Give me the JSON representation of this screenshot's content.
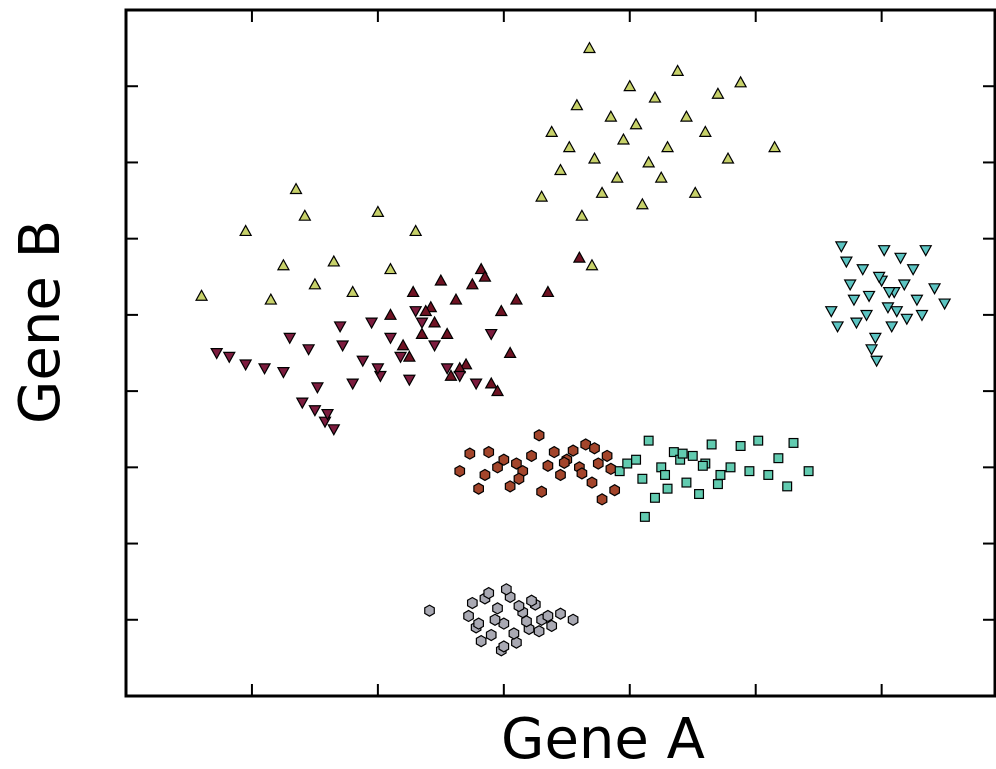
{
  "chart_data": {
    "type": "scatter",
    "xlabel": "Gene A",
    "ylabel": "Gene B",
    "xlim": [
      0,
      6.9
    ],
    "ylim": [
      0,
      9
    ],
    "xticks": [
      1,
      2,
      3,
      4,
      5,
      6
    ],
    "yticks": [
      1,
      2,
      3,
      4,
      5,
      6,
      7,
      8
    ],
    "tick_labels": false,
    "grid": false,
    "series": [
      {
        "color": "#a9a9b3",
        "marker": "hexagon",
        "x": [
          2.41,
          2.72,
          2.78,
          2.85,
          2.9,
          2.95,
          3.0,
          3.05,
          3.1,
          3.15,
          3.2,
          3.25,
          3.3,
          3.38,
          3.45,
          3.55,
          2.75,
          2.82,
          2.88,
          2.93,
          2.98,
          3.02,
          3.08,
          3.12,
          3.18,
          3.22,
          3.28,
          3.35,
          2.8,
          3.0
        ],
        "values": [
          1.12,
          1.05,
          0.9,
          1.28,
          0.8,
          1.15,
          0.95,
          1.3,
          0.7,
          1.1,
          0.88,
          1.2,
          1.0,
          0.92,
          1.08,
          1.0,
          1.22,
          0.72,
          1.35,
          1.0,
          0.6,
          1.4,
          0.82,
          1.18,
          0.98,
          1.25,
          0.85,
          1.05,
          0.95,
          0.65
        ]
      },
      {
        "color": "#a3452b",
        "marker": "hexagon",
        "x": [
          2.65,
          2.73,
          2.85,
          2.88,
          3.0,
          3.05,
          3.1,
          3.15,
          3.22,
          3.28,
          3.35,
          3.4,
          3.45,
          3.5,
          3.55,
          3.6,
          3.65,
          3.7,
          3.75,
          3.78,
          3.82,
          3.88,
          2.95,
          3.12,
          3.3,
          3.48,
          3.62,
          3.72,
          2.8,
          3.85
        ],
        "values": [
          2.95,
          3.18,
          2.9,
          3.2,
          3.1,
          2.75,
          3.05,
          2.95,
          3.15,
          3.42,
          3.02,
          3.2,
          2.9,
          3.1,
          3.22,
          3.0,
          3.3,
          2.8,
          3.05,
          2.58,
          3.15,
          2.7,
          3.0,
          2.85,
          2.68,
          3.06,
          2.92,
          3.25,
          2.72,
          2.98
        ]
      },
      {
        "color": "#62cbb0",
        "marker": "square",
        "x": [
          3.92,
          3.98,
          4.05,
          4.1,
          4.15,
          4.2,
          4.25,
          4.3,
          4.35,
          4.4,
          4.45,
          4.5,
          4.55,
          4.6,
          4.65,
          4.72,
          4.8,
          4.88,
          4.95,
          5.02,
          5.1,
          5.18,
          5.25,
          5.42,
          4.12,
          4.28,
          4.42,
          4.58,
          4.7,
          5.3
        ],
        "values": [
          2.95,
          3.05,
          3.1,
          2.85,
          3.35,
          2.6,
          3.0,
          2.72,
          3.2,
          3.1,
          2.8,
          3.15,
          2.65,
          3.05,
          3.3,
          2.9,
          3.0,
          3.28,
          2.95,
          3.35,
          2.9,
          3.12,
          2.75,
          2.95,
          2.35,
          2.9,
          3.18,
          3.02,
          2.78,
          3.32
        ]
      },
      {
        "color": "#5cc4c2",
        "marker": "triangle-down",
        "x": [
          5.6,
          5.68,
          5.75,
          5.8,
          5.85,
          5.9,
          5.95,
          6.0,
          6.05,
          6.1,
          6.15,
          6.2,
          6.28,
          6.35,
          6.42,
          6.5,
          5.72,
          5.88,
          5.98,
          6.08,
          6.18,
          6.25,
          5.78,
          5.92,
          6.02,
          6.12,
          5.65,
          6.32,
          5.96,
          6.06
        ],
        "values": [
          5.05,
          5.9,
          5.4,
          4.9,
          5.6,
          5.25,
          4.7,
          5.45,
          5.1,
          5.3,
          5.75,
          4.95,
          5.2,
          5.85,
          5.35,
          5.15,
          5.7,
          5.0,
          5.5,
          4.85,
          5.4,
          5.6,
          5.2,
          4.55,
          5.85,
          5.05,
          4.85,
          5.0,
          4.4,
          5.3
        ]
      },
      {
        "color": "#c7d16a",
        "marker": "triangle-up",
        "x": [
          3.3,
          3.38,
          3.45,
          3.52,
          3.58,
          3.62,
          3.68,
          3.72,
          3.78,
          3.85,
          3.9,
          3.95,
          4.0,
          4.05,
          4.1,
          4.15,
          4.2,
          4.25,
          4.3,
          4.38,
          4.45,
          4.52,
          4.6,
          4.7,
          4.78,
          4.88,
          5.15,
          3.7,
          0.6,
          0.95,
          1.15,
          1.25,
          1.35,
          1.42,
          1.5,
          1.65,
          1.8,
          2.0,
          2.1,
          2.3
        ],
        "values": [
          6.55,
          7.4,
          6.9,
          7.2,
          7.75,
          6.3,
          8.5,
          7.05,
          6.6,
          7.6,
          6.8,
          7.3,
          8.0,
          7.5,
          6.45,
          7.0,
          7.85,
          6.8,
          7.2,
          8.2,
          7.6,
          6.6,
          7.4,
          7.9,
          7.05,
          8.05,
          7.2,
          5.65,
          5.25,
          6.1,
          5.2,
          5.65,
          6.65,
          6.3,
          5.4,
          5.7,
          5.3,
          6.35,
          5.6,
          6.1
        ]
      },
      {
        "color": "#6e1222",
        "marker": "triangle-up",
        "x": [
          2.1,
          2.2,
          2.28,
          2.35,
          2.42,
          2.5,
          2.58,
          2.62,
          2.7,
          2.75,
          2.82,
          2.9,
          2.98,
          3.05,
          3.1,
          2.25,
          2.45,
          2.65,
          2.85,
          3.35,
          3.6,
          2.38,
          2.55,
          2.95
        ],
        "values": [
          5.0,
          4.6,
          5.3,
          4.75,
          5.1,
          5.45,
          4.2,
          5.2,
          4.35,
          5.4,
          5.6,
          4.1,
          5.05,
          4.5,
          5.2,
          4.45,
          4.9,
          4.3,
          5.5,
          5.3,
          5.75,
          5.05,
          4.75,
          4.0
        ]
      },
      {
        "color": "#7c1c3e",
        "marker": "triangle-down",
        "x": [
          0.72,
          0.82,
          0.95,
          1.1,
          1.25,
          1.4,
          1.5,
          1.58,
          1.65,
          1.72,
          1.8,
          1.88,
          1.95,
          2.02,
          2.1,
          2.18,
          2.25,
          2.35,
          2.45,
          2.55,
          2.65,
          2.78,
          2.9,
          1.52,
          1.45,
          1.7,
          2.0,
          1.3,
          1.6,
          2.3
        ],
        "values": [
          4.5,
          4.45,
          4.35,
          4.3,
          4.25,
          3.85,
          3.75,
          3.6,
          3.5,
          4.6,
          4.1,
          4.4,
          4.9,
          4.2,
          4.7,
          4.45,
          4.15,
          4.9,
          4.6,
          4.3,
          4.2,
          4.1,
          4.75,
          4.05,
          4.55,
          4.85,
          4.3,
          4.7,
          3.7,
          5.05
        ]
      }
    ]
  }
}
